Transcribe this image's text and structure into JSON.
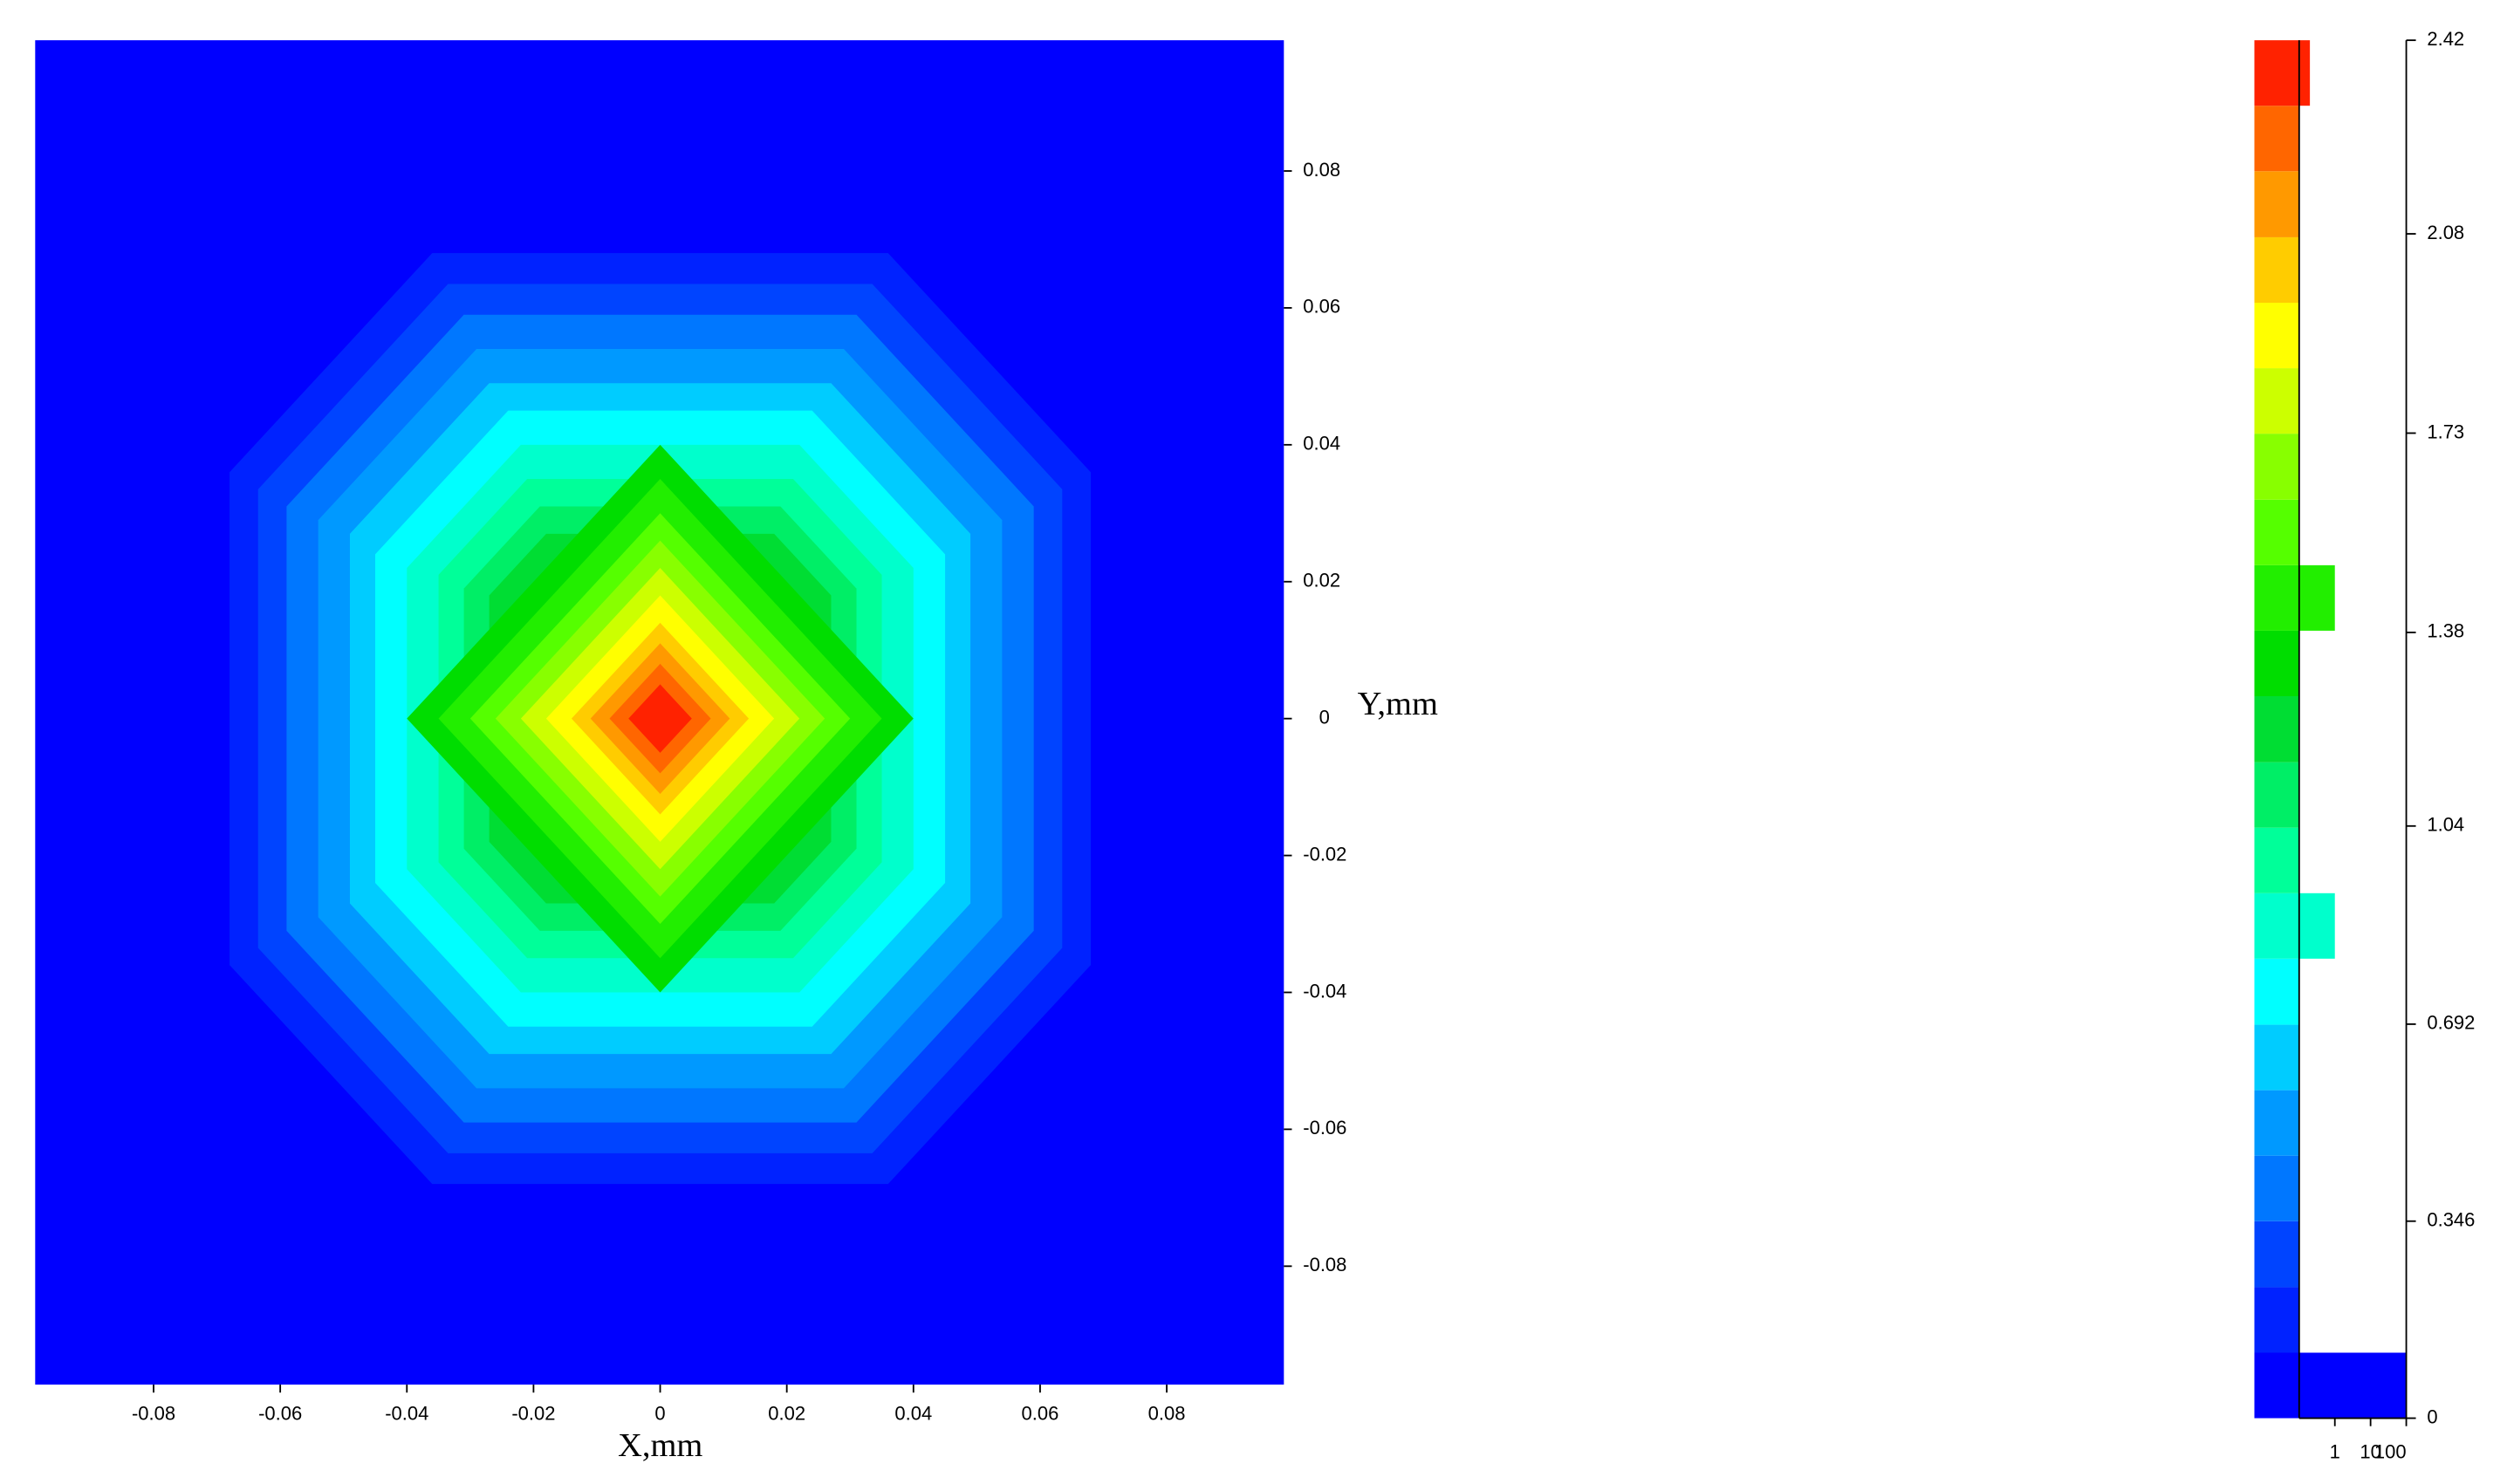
{
  "chart_data": {
    "type": "contour",
    "xlabel": "X,mm",
    "ylabel": "Y,mm",
    "xlim": [
      -0.0987,
      0.0985
    ],
    "ylim": [
      -0.0973,
      0.0991
    ],
    "xticks": [
      -0.08,
      -0.06,
      -0.04,
      -0.02,
      0,
      0.02,
      0.04,
      0.06,
      0.08
    ],
    "yticks": [
      -0.08,
      -0.06,
      -0.04,
      -0.02,
      0,
      0.02,
      0.04,
      0.06,
      0.08
    ],
    "regions": [
      {
        "a": 0.068,
        "b": 0.104
      },
      {
        "a": 0.0635,
        "b": 0.097
      },
      {
        "a": 0.059,
        "b": 0.09
      },
      {
        "a": 0.054,
        "b": 0.083
      },
      {
        "a": 0.049,
        "b": 0.076
      },
      {
        "a": 0.045,
        "b": 0.069
      },
      {
        "a": 0.04,
        "b": 0.062
      },
      {
        "a": 0.035,
        "b": 0.056
      },
      {
        "a": 0.031,
        "b": 0.05
      },
      {
        "a": 0.027,
        "b": 0.045
      },
      {
        "a": 0.04,
        "b": 0.04
      },
      {
        "a": 0.035,
        "b": 0.035
      },
      {
        "a": 0.03,
        "b": 0.03
      },
      {
        "a": 0.026,
        "b": 0.026
      },
      {
        "a": 0.022,
        "b": 0.022
      },
      {
        "a": 0.018,
        "b": 0.018
      },
      {
        "a": 0.014,
        "b": 0.014
      },
      {
        "a": 0.011,
        "b": 0.011
      },
      {
        "a": 0.008,
        "b": 0.008
      },
      {
        "a": 0.005,
        "b": 0.005
      }
    ],
    "colorbar": {
      "levels": [
        0,
        0.115,
        0.23,
        0.346,
        0.461,
        0.576,
        0.691,
        0.807,
        0.922,
        1.037,
        1.152,
        1.268,
        1.383,
        1.498,
        1.613,
        1.729,
        1.844,
        1.959,
        2.074,
        2.19,
        2.305,
        2.42
      ],
      "colors": [
        "#0000ff",
        "#0022ff",
        "#0044ff",
        "#0077ff",
        "#0099ff",
        "#00ccff",
        "#00ffff",
        "#00ffcc",
        "#00ff99",
        "#00ee66",
        "#00dd33",
        "#00dd00",
        "#22ee00",
        "#55ff00",
        "#88ff00",
        "#ccff00",
        "#ffff00",
        "#ffcc00",
        "#ff9900",
        "#ff6600",
        "#ff2200"
      ],
      "yticks": [
        0,
        0.346,
        0.692,
        1.04,
        1.38,
        1.73,
        2.08,
        2.42
      ],
      "counts": [
        100,
        0,
        0,
        0,
        0,
        0,
        0,
        1,
        0,
        0,
        0,
        0,
        1,
        0,
        0,
        0,
        0,
        0,
        0,
        0,
        0.2
      ],
      "count_lim": [
        0.1,
        100
      ],
      "count_ticks": [
        1,
        10,
        100
      ],
      "count_log": true
    }
  }
}
